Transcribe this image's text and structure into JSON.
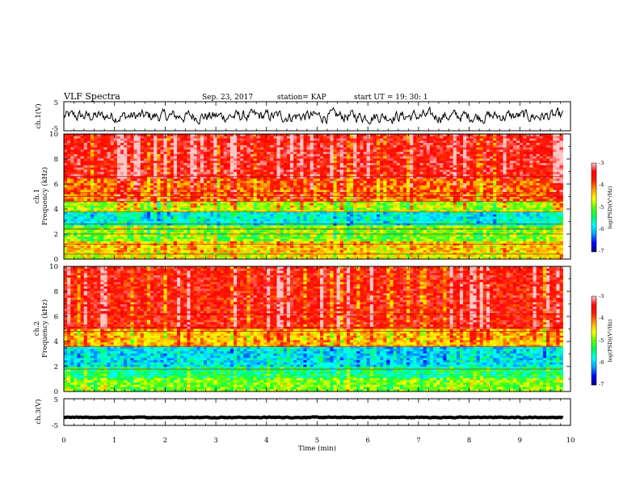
{
  "header": {
    "title": "VLF Spectra",
    "date": "Sep. 23, 2017",
    "station": "station= KAP",
    "start": "start  UT =   19: 30: 1"
  },
  "chart_data": [
    {
      "type": "line",
      "name": "ch1-waveform",
      "ylabel": "ch.1(V)",
      "ylim": [
        -5,
        5
      ],
      "yticks": [
        "5",
        "-5"
      ],
      "x_range_min": [
        0,
        9.85
      ],
      "y_mean": 0,
      "y_amplitude": 2
    },
    {
      "type": "heatmap",
      "name": "ch1-spectrogram",
      "ylabel_lines": [
        "ch.1",
        "Frequency  (kHz)"
      ],
      "ylim": [
        0,
        10
      ],
      "yticks": [
        "0",
        "2",
        "4",
        "6",
        "8",
        "10"
      ],
      "x_range_min": [
        0,
        9.85
      ],
      "bands_khz": [
        {
          "from": 0.0,
          "to": 0.5,
          "level": -4.6
        },
        {
          "from": 0.5,
          "to": 1.5,
          "level": -4.4
        },
        {
          "from": 1.5,
          "to": 2.6,
          "level": -5.0
        },
        {
          "from": 2.6,
          "to": 3.8,
          "level": -5.8
        },
        {
          "from": 3.8,
          "to": 4.6,
          "level": -4.8
        },
        {
          "from": 4.6,
          "to": 6.5,
          "level": -4.0
        },
        {
          "from": 6.5,
          "to": 10.0,
          "level": -3.5
        }
      ],
      "lines_khz": [
        0.4,
        1.2,
        2.0,
        2.4,
        2.8,
        3.8,
        4.6,
        5.0,
        5.3,
        6.6
      ]
    },
    {
      "type": "heatmap",
      "name": "ch2-spectrogram",
      "ylabel_lines": [
        "ch.2",
        "Frequency  (kHz)"
      ],
      "ylim": [
        0,
        10
      ],
      "yticks": [
        "0",
        "2",
        "4",
        "6",
        "8",
        "10"
      ],
      "x_range_min": [
        0,
        9.85
      ],
      "bands_khz": [
        {
          "from": 0.0,
          "to": 1.0,
          "level": -5.0
        },
        {
          "from": 1.0,
          "to": 2.0,
          "level": -5.4
        },
        {
          "from": 2.0,
          "to": 3.6,
          "level": -5.9
        },
        {
          "from": 3.6,
          "to": 5.0,
          "level": -4.3
        },
        {
          "from": 5.0,
          "to": 10.0,
          "level": -3.6
        }
      ],
      "lines_khz": [
        1.8,
        3.6,
        4.8,
        5.1,
        6.2
      ]
    },
    {
      "type": "line",
      "name": "ch3-waveform",
      "ylabel": "ch.3(V)",
      "ylim": [
        -5,
        5
      ],
      "yticks": [
        "5",
        "-5"
      ],
      "x_range_min": [
        0,
        9.85
      ],
      "y_mean": -2,
      "y_amplitude": 0.15
    }
  ],
  "xaxis": {
    "label": "Time  (min)",
    "ticks": [
      "0",
      "1",
      "2",
      "3",
      "4",
      "5",
      "6",
      "7",
      "8",
      "9",
      "10"
    ],
    "xlim": [
      0,
      10
    ]
  },
  "colorbar": {
    "label": "log(PSD)(V²/Hz)",
    "ticks": [
      "-3",
      "-4",
      "-5",
      "-6",
      "-7"
    ],
    "range": [
      -7,
      -3
    ],
    "stops": [
      "#00008f",
      "#0000ff",
      "#00a0ff",
      "#00ffff",
      "#00ff60",
      "#60ff00",
      "#ffff00",
      "#ffa000",
      "#ff2000",
      "#ff0000",
      "#ffc8c8"
    ]
  }
}
